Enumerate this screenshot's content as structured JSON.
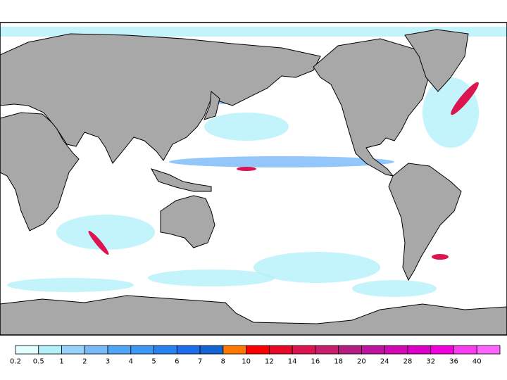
{
  "legend": {
    "labels": [
      "0.2",
      "0.5",
      "1",
      "2",
      "3",
      "4",
      "5",
      "6",
      "7",
      "8",
      "10",
      "12",
      "14",
      "16",
      "18",
      "20",
      "24",
      "28",
      "32",
      "36",
      "40"
    ],
    "colors": [
      "#e1ffff",
      "#b4f0fa",
      "#96d2fa",
      "#78b9fa",
      "#50a5f5",
      "#3c97f5",
      "#2882f0",
      "#1e6eeb",
      "#1464d2",
      "#ff7800",
      "#fa0000",
      "#e60a28",
      "#dc1450",
      "#c81e6e",
      "#b41e82",
      "#be14a0",
      "#d20ab4",
      "#dc00c8",
      "#f000dc",
      "#fa3cf0",
      "#ff64ff"
    ]
  }
}
